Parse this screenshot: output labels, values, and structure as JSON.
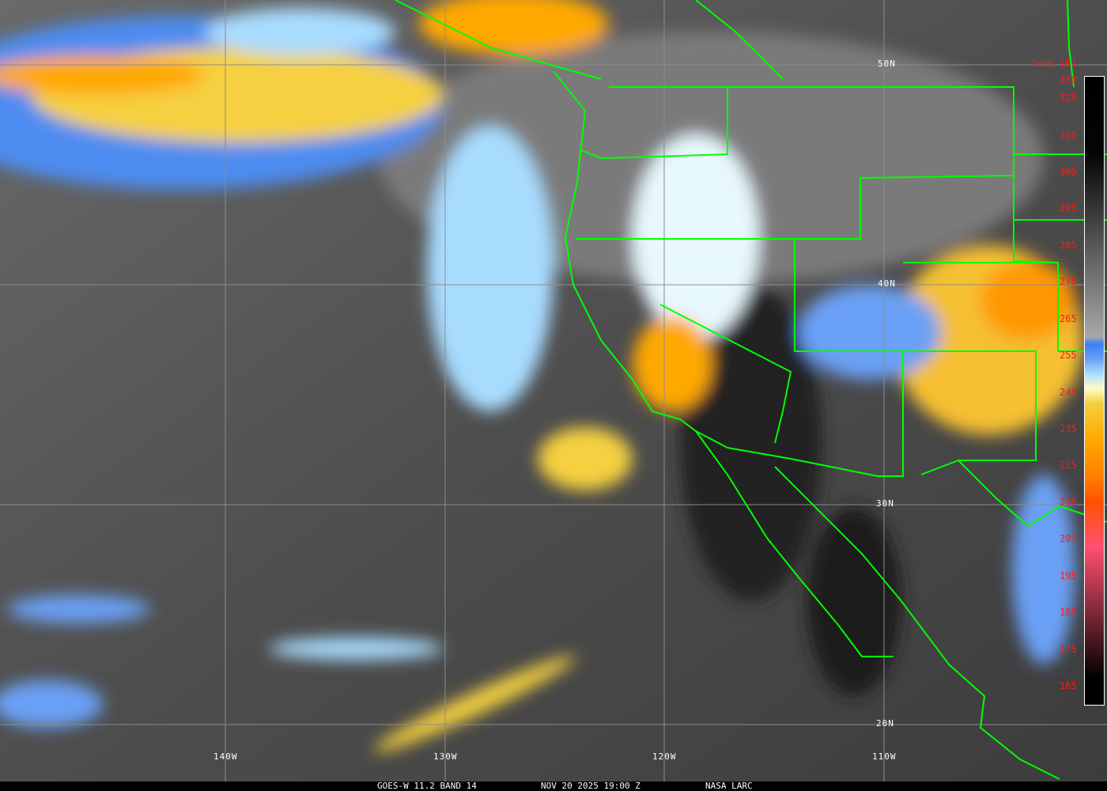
{
  "footer": {
    "satellite_band": "GOES-W 11.2 BAND 14",
    "datetime": "NOV 20 2025 19:00 Z",
    "source": "NASA LARC"
  },
  "grid": {
    "latitudes": [
      "50N",
      "40N",
      "30N",
      "20N"
    ],
    "longitudes": [
      "140W",
      "130W",
      "120W",
      "110W"
    ]
  },
  "colorbar": {
    "title": "Temp [K]",
    "range_k": [
      165,
      330
    ],
    "ticks": [
      "330",
      "325",
      "315",
      "305",
      "295",
      "285",
      "275",
      "265",
      "255",
      "245",
      "235",
      "225",
      "215",
      "205",
      "195",
      "185",
      "175",
      "165"
    ],
    "color_stops": [
      {
        "k": 330,
        "color": "#000000"
      },
      {
        "k": 310,
        "color": "#050505"
      },
      {
        "k": 260,
        "color": "#a8a8a8"
      },
      {
        "k": 258,
        "color": "#3a7ff5"
      },
      {
        "k": 254,
        "color": "#6aa0f5"
      },
      {
        "k": 250,
        "color": "#a8dcff"
      },
      {
        "k": 246,
        "color": "#fffcc8"
      },
      {
        "k": 242,
        "color": "#f5d040"
      },
      {
        "k": 232,
        "color": "#ffa800"
      },
      {
        "k": 222,
        "color": "#ff8000"
      },
      {
        "k": 215,
        "color": "#ff5000"
      },
      {
        "k": 203,
        "color": "#ff5070"
      },
      {
        "k": 167,
        "color": "#000000"
      }
    ]
  },
  "colors": {
    "borders": "#00ff00",
    "grid": "#8c8c8c",
    "labels": "#ff1a1a"
  }
}
